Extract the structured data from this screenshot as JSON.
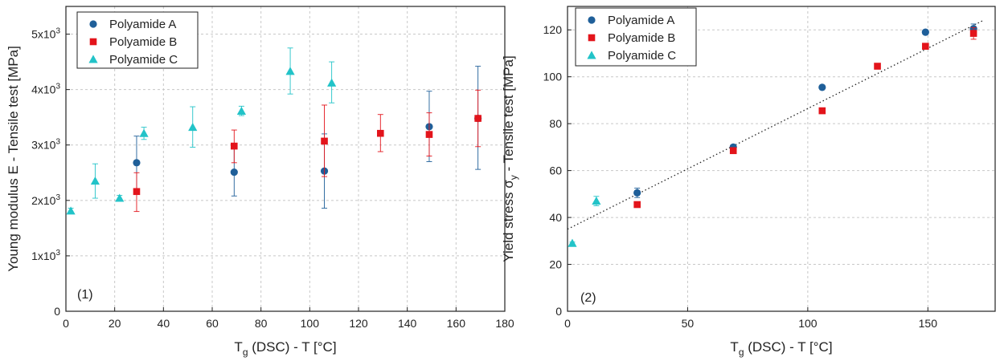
{
  "colors": {
    "polyamide_a": "#1f5f99",
    "polyamide_b": "#e3141b",
    "polyamide_c": "#22c3c8",
    "fit_line": "#222222"
  },
  "chart_data": [
    {
      "type": "scatter",
      "panel_label": "(1)",
      "xlabel_main": "T",
      "xlabel_sub": "g",
      "xlabel_rest": " (DSC) - T [°C]",
      "ylabel": "Young modulus E - Tensile test [MPa]",
      "xlim": [
        0,
        180
      ],
      "ylim": [
        0,
        5500
      ],
      "x_ticks": [
        0,
        20,
        40,
        60,
        80,
        100,
        120,
        140,
        160,
        180
      ],
      "x_tick_labels": [
        "0",
        "20",
        "40",
        "60",
        "80",
        "100",
        "120",
        "140",
        "160",
        "180"
      ],
      "y_ticks": [
        0,
        1000,
        2000,
        3000,
        4000,
        5000
      ],
      "y_tick_labels": [
        {
          "mantissa": "0",
          "exp": ""
        },
        {
          "mantissa": "1x10",
          "exp": "3"
        },
        {
          "mantissa": "2x10",
          "exp": "3"
        },
        {
          "mantissa": "3x10",
          "exp": "3"
        },
        {
          "mantissa": "4x10",
          "exp": "3"
        },
        {
          "mantissa": "5x10",
          "exp": "3"
        }
      ],
      "grid": true,
      "legend_position": "top-left",
      "series": [
        {
          "name": "Polyamide A",
          "marker": "circle",
          "points": [
            {
              "x": 29,
              "y": 2680,
              "lo": 2180,
              "hi": 3160
            },
            {
              "x": 69,
              "y": 2510,
              "lo": 2080,
              "hi": 3000
            },
            {
              "x": 106,
              "y": 2530,
              "lo": 1860,
              "hi": 3200
            },
            {
              "x": 149,
              "y": 3330,
              "lo": 2700,
              "hi": 3970
            },
            {
              "x": 169,
              "y": 3480,
              "lo": 2560,
              "hi": 4420
            }
          ]
        },
        {
          "name": "Polyamide B",
          "marker": "square",
          "points": [
            {
              "x": 29,
              "y": 2160,
              "lo": 1800,
              "hi": 2500
            },
            {
              "x": 69,
              "y": 2980,
              "lo": 2680,
              "hi": 3270
            },
            {
              "x": 106,
              "y": 3070,
              "lo": 2430,
              "hi": 3720
            },
            {
              "x": 129,
              "y": 3210,
              "lo": 2880,
              "hi": 3550
            },
            {
              "x": 149,
              "y": 3190,
              "lo": 2800,
              "hi": 3580
            },
            {
              "x": 169,
              "y": 3480,
              "lo": 2970,
              "hi": 3990
            }
          ]
        },
        {
          "name": "Polyamide C",
          "marker": "triangle",
          "points": [
            {
              "x": 2,
              "y": 1810,
              "lo": 1760,
              "hi": 1860
            },
            {
              "x": 12,
              "y": 2350,
              "lo": 2040,
              "hi": 2660
            },
            {
              "x": 22,
              "y": 2040,
              "lo": 1990,
              "hi": 2090
            },
            {
              "x": 32,
              "y": 3210,
              "lo": 3100,
              "hi": 3320
            },
            {
              "x": 52,
              "y": 3320,
              "lo": 2960,
              "hi": 3690
            },
            {
              "x": 72,
              "y": 3610,
              "lo": 3530,
              "hi": 3700
            },
            {
              "x": 92,
              "y": 4330,
              "lo": 3920,
              "hi": 4750
            },
            {
              "x": 109,
              "y": 4120,
              "lo": 3760,
              "hi": 4500
            }
          ]
        }
      ]
    },
    {
      "type": "scatter",
      "panel_label": "(2)",
      "xlabel_main": "T",
      "xlabel_sub": "g",
      "xlabel_rest": " (DSC) - T [°C]",
      "ylabel": "Yield stress σ",
      "ylabel_sub": "y",
      "ylabel_rest": " - Tensile test [MPa]",
      "xlim": [
        0,
        178
      ],
      "ylim": [
        0,
        130
      ],
      "x_ticks": [
        0,
        50,
        100,
        150
      ],
      "x_tick_labels": [
        "0",
        "50",
        "100",
        "150"
      ],
      "y_ticks": [
        0,
        20,
        40,
        60,
        80,
        100,
        120
      ],
      "y_tick_labels": [
        "0",
        "20",
        "40",
        "60",
        "80",
        "100",
        "120"
      ],
      "grid": true,
      "legend_position": "top-left",
      "fit_line": {
        "style": "dotted",
        "x": [
          0,
          173
        ],
        "y": [
          35,
          124
        ]
      },
      "series": [
        {
          "name": "Polyamide A",
          "marker": "circle",
          "points": [
            {
              "x": 29,
              "y": 50.5,
              "lo": 48.5,
              "hi": 52.5
            },
            {
              "x": 69,
              "y": 70.0,
              "lo": 69.0,
              "hi": 71.0
            },
            {
              "x": 106,
              "y": 95.5,
              "lo": 95.0,
              "hi": 96.0
            },
            {
              "x": 149,
              "y": 119.0,
              "lo": 118.0,
              "hi": 120.0
            },
            {
              "x": 169,
              "y": 120.5,
              "lo": 118.5,
              "hi": 122.5
            }
          ]
        },
        {
          "name": "Polyamide B",
          "marker": "square",
          "points": [
            {
              "x": 29,
              "y": 45.5,
              "lo": 45.0,
              "hi": 46.0
            },
            {
              "x": 69,
              "y": 68.5,
              "lo": 68.0,
              "hi": 69.0
            },
            {
              "x": 106,
              "y": 85.5,
              "lo": 85.0,
              "hi": 86.0
            },
            {
              "x": 129,
              "y": 104.5,
              "lo": 104.0,
              "hi": 105.0
            },
            {
              "x": 149,
              "y": 113.0,
              "lo": 112.0,
              "hi": 114.0
            },
            {
              "x": 169,
              "y": 118.5,
              "lo": 116.0,
              "hi": 121.0
            }
          ]
        },
        {
          "name": "Polyamide C",
          "marker": "triangle",
          "points": [
            {
              "x": 2,
              "y": 29.0,
              "lo": 28.5,
              "hi": 29.5
            },
            {
              "x": 12,
              "y": 47.0,
              "lo": 45.0,
              "hi": 49.0
            }
          ]
        }
      ]
    }
  ]
}
